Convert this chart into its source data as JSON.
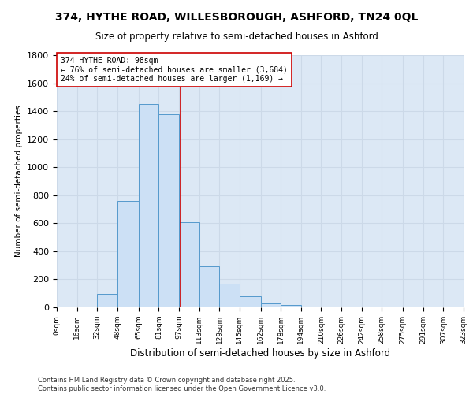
{
  "title1": "374, HYTHE ROAD, WILLESBOROUGH, ASHFORD, TN24 0QL",
  "title2": "Size of property relative to semi-detached houses in Ashford",
  "xlabel": "Distribution of semi-detached houses by size in Ashford",
  "ylabel": "Number of semi-detached properties",
  "bar_edges": [
    0,
    16,
    32,
    48,
    65,
    81,
    97,
    113,
    129,
    145,
    162,
    178,
    194,
    210,
    226,
    242,
    258,
    275,
    291,
    307,
    323
  ],
  "bar_heights": [
    5,
    5,
    95,
    760,
    1450,
    1380,
    610,
    290,
    170,
    80,
    30,
    15,
    5,
    0,
    0,
    5,
    0,
    0,
    0,
    0
  ],
  "tick_labels": [
    "0sqm",
    "16sqm",
    "32sqm",
    "48sqm",
    "65sqm",
    "81sqm",
    "97sqm",
    "113sqm",
    "129sqm",
    "145sqm",
    "162sqm",
    "178sqm",
    "194sqm",
    "210sqm",
    "226sqm",
    "242sqm",
    "258sqm",
    "275sqm",
    "291sqm",
    "307sqm",
    "323sqm"
  ],
  "bar_facecolor": "#cce0f5",
  "bar_edgecolor": "#5599cc",
  "vline_x": 98,
  "vline_color": "#cc0000",
  "annotation_line1": "374 HYTHE ROAD: 98sqm",
  "annotation_line2": "← 76% of semi-detached houses are smaller (3,684)",
  "annotation_line3": "24% of semi-detached houses are larger (1,169) →",
  "annotation_box_facecolor": "#ffffff",
  "annotation_box_edgecolor": "#cc0000",
  "ylim": [
    0,
    1800
  ],
  "yticks": [
    0,
    200,
    400,
    600,
    800,
    1000,
    1200,
    1400,
    1600,
    1800
  ],
  "grid_color": "#ccd9e8",
  "background_color": "#dce8f5",
  "footnote1": "Contains HM Land Registry data © Crown copyright and database right 2025.",
  "footnote2": "Contains public sector information licensed under the Open Government Licence v3.0."
}
